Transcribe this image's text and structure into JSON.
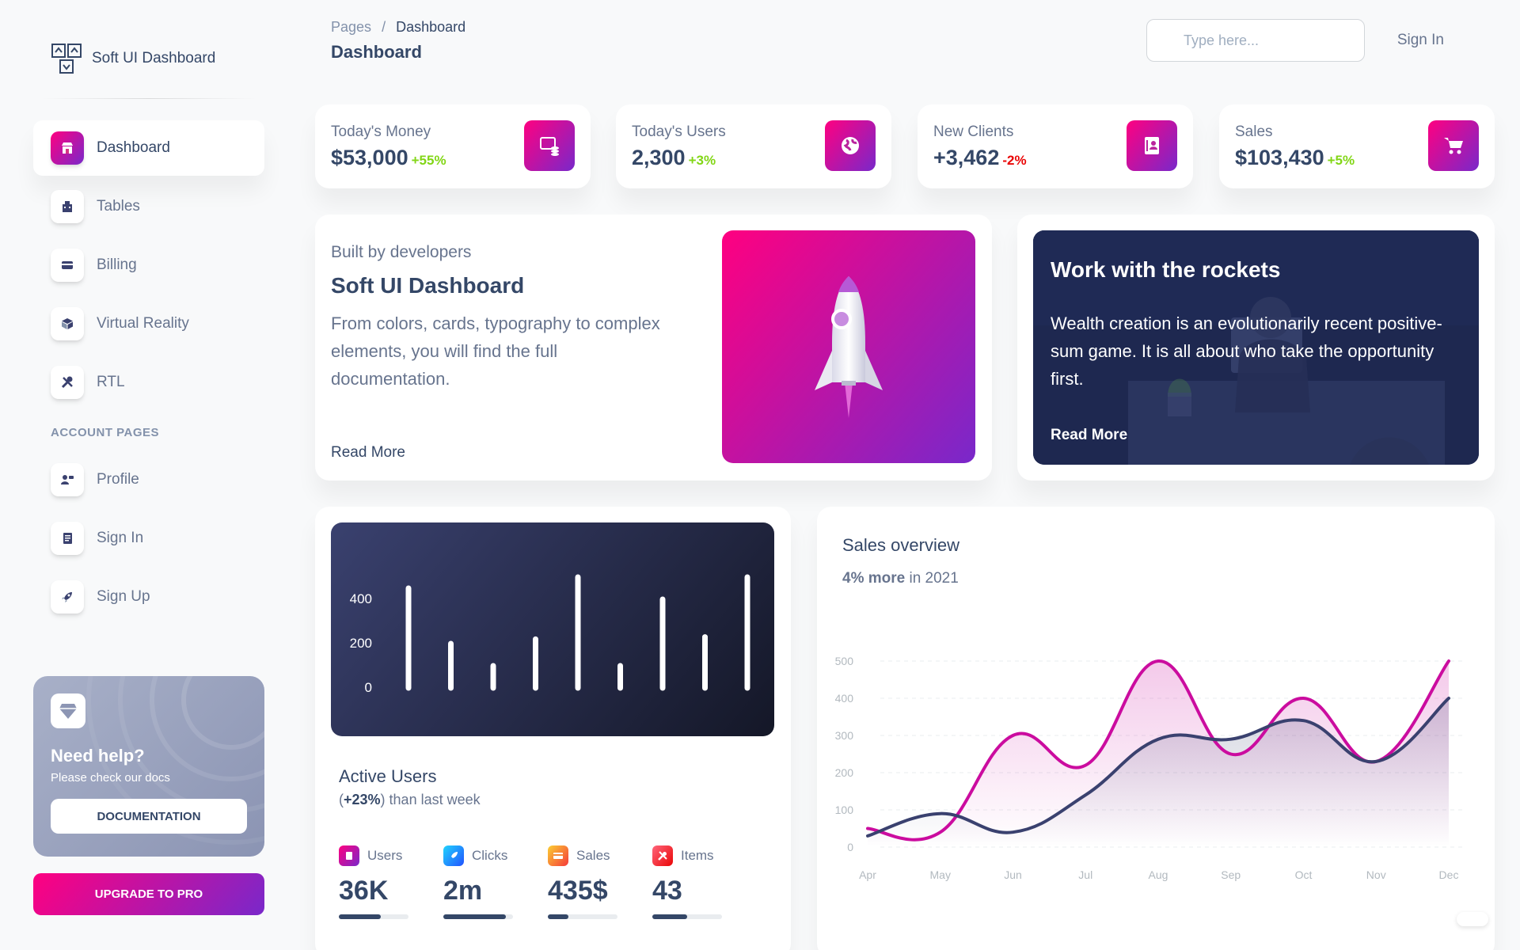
{
  "brand": {
    "name": "Soft UI Dashboard"
  },
  "sidebar": {
    "items": [
      {
        "label": "Dashboard",
        "icon": "shop-icon",
        "active": true
      },
      {
        "label": "Tables",
        "icon": "office-icon"
      },
      {
        "label": "Billing",
        "icon": "credit-card-icon"
      },
      {
        "label": "Virtual Reality",
        "icon": "box-3d-icon"
      },
      {
        "label": "RTL",
        "icon": "settings-tools-icon"
      }
    ],
    "section_title": "ACCOUNT PAGES",
    "account_items": [
      {
        "label": "Profile",
        "icon": "customer-support-icon"
      },
      {
        "label": "Sign In",
        "icon": "document-icon"
      },
      {
        "label": "Sign Up",
        "icon": "spaceship-icon"
      }
    ],
    "help": {
      "title": "Need help?",
      "subtitle": "Please check our docs",
      "button": "DOCUMENTATION"
    },
    "upgrade": "UPGRADE TO PRO"
  },
  "header": {
    "breadcrumb_root": "Pages",
    "breadcrumb_sep": "/",
    "breadcrumb_current": "Dashboard",
    "title": "Dashboard",
    "search_placeholder": "Type here...",
    "signin": "Sign In"
  },
  "stats": [
    {
      "label": "Today's Money",
      "value": "$53,000",
      "change": "+55%",
      "icon": "money-icon"
    },
    {
      "label": "Today's Users",
      "value": "2,300",
      "change": "+3%",
      "icon": "globe-icon"
    },
    {
      "label": "New Clients",
      "value": "+3,462",
      "change": "-2%",
      "icon": "document-icon"
    },
    {
      "label": "Sales",
      "value": "$103,430",
      "change": "+5%",
      "icon": "cart-icon"
    }
  ],
  "built": {
    "kicker": "Built by developers",
    "title": "Soft UI Dashboard",
    "text": "From colors, cards, typography to complex elements, you will find the full documentation.",
    "link": "Read More"
  },
  "rockets": {
    "title": "Work with the rockets",
    "text": "Wealth creation is an evolutionarily recent positive-sum game. It is all about who take the opportunity first.",
    "link": "Read More"
  },
  "active_users": {
    "title": "Active Users",
    "sub_value": "+23%",
    "sub_open": "(",
    "sub_close": ") than last week",
    "metrics": [
      {
        "label": "Users",
        "value": "36K",
        "icon": "users-icon",
        "color": "#cb0c9f",
        "progress": 0.6
      },
      {
        "label": "Clicks",
        "value": "2m",
        "icon": "rocket-icon",
        "color": "#17c1e8",
        "progress": 0.9
      },
      {
        "label": "Sales",
        "value": "435$",
        "icon": "card-icon",
        "color": "#f53939",
        "progress": 0.3
      },
      {
        "label": "Items",
        "value": "43",
        "icon": "tools-icon",
        "color": "#ea0606",
        "progress": 0.5
      }
    ]
  },
  "sales_overview": {
    "title": "Sales overview",
    "sub_bold": "4% more",
    "sub_rest": " in 2021"
  },
  "chart_data": [
    {
      "type": "bar",
      "categories": [
        "",
        "",
        "",
        "",
        "",
        "",
        "",
        "",
        ""
      ],
      "values": [
        450,
        200,
        100,
        220,
        500,
        100,
        400,
        230,
        500
      ],
      "yticks": [
        0,
        200,
        400
      ],
      "ylim": [
        0,
        500
      ]
    },
    {
      "type": "line",
      "x": [
        "Apr",
        "May",
        "Jun",
        "Jul",
        "Aug",
        "Sep",
        "Oct",
        "Nov",
        "Dec"
      ],
      "series": [
        {
          "values": [
            50,
            40,
            300,
            220,
            500,
            250,
            400,
            230,
            500
          ],
          "color": "#cb0c9f"
        },
        {
          "values": [
            30,
            90,
            40,
            140,
            290,
            290,
            340,
            230,
            400
          ],
          "color": "#3a416f"
        }
      ],
      "yticks": [
        0,
        100,
        200,
        300,
        400,
        500
      ],
      "ylim": [
        0,
        500
      ],
      "grid": true
    }
  ]
}
